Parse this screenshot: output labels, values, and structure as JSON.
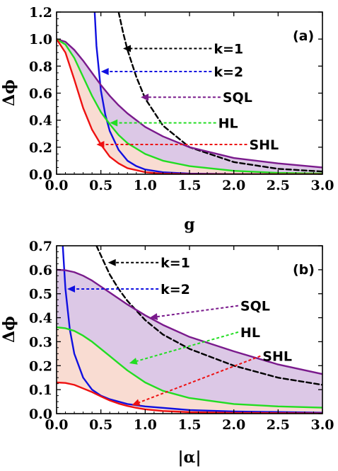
{
  "colors": {
    "k1": "#000000",
    "k2": "#1010e0",
    "sql": "#7a1a8c",
    "hl": "#22dd22",
    "shl": "#ee1111",
    "fill_upper": "#dcc8e6",
    "fill_lower": "#f9dcd2"
  },
  "chart_data": [
    {
      "type": "line",
      "panel_tag": "(a)",
      "xlabel": "g",
      "ylabel": "Δϕ",
      "xlim": [
        0,
        3
      ],
      "ylim": [
        0,
        1.2
      ],
      "xticks": [
        "0.0",
        "0.5",
        "1.0",
        "1.5",
        "2.0",
        "2.5",
        "3.0"
      ],
      "yticks": [
        "0.0",
        "0.2",
        "0.4",
        "0.6",
        "0.8",
        "1.0",
        "1.2"
      ],
      "series": [
        {
          "name": "k=1",
          "style": "dashed",
          "color": "#000000",
          "x": [
            0.7,
            0.75,
            0.8,
            0.9,
            1.0,
            1.2,
            1.5,
            2.0,
            2.5,
            3.0
          ],
          "y": [
            1.2,
            1.05,
            0.92,
            0.72,
            0.56,
            0.36,
            0.2,
            0.09,
            0.04,
            0.02
          ]
        },
        {
          "name": "k=2",
          "style": "solid",
          "color": "#1010e0",
          "x": [
            0.43,
            0.45,
            0.5,
            0.55,
            0.6,
            0.7,
            0.8,
            0.9,
            1.0,
            1.2,
            1.5,
            2.0,
            3.0
          ],
          "y": [
            1.2,
            0.95,
            0.62,
            0.44,
            0.32,
            0.18,
            0.1,
            0.06,
            0.035,
            0.015,
            0.005,
            0.001,
            0.0
          ]
        },
        {
          "name": "SQL",
          "style": "solid",
          "color": "#7a1a8c",
          "x": [
            0,
            0.1,
            0.2,
            0.3,
            0.4,
            0.5,
            0.6,
            0.7,
            0.8,
            1.0,
            1.2,
            1.5,
            2.0,
            2.5,
            3.0
          ],
          "y": [
            1.0,
            0.98,
            0.92,
            0.84,
            0.75,
            0.66,
            0.58,
            0.51,
            0.45,
            0.35,
            0.28,
            0.2,
            0.12,
            0.08,
            0.05
          ]
        },
        {
          "name": "HL",
          "style": "solid",
          "color": "#22dd22",
          "x": [
            0,
            0.1,
            0.2,
            0.3,
            0.4,
            0.5,
            0.6,
            0.7,
            0.8,
            1.0,
            1.2,
            1.5,
            2.0,
            2.5,
            3.0
          ],
          "y": [
            1.0,
            0.96,
            0.86,
            0.72,
            0.58,
            0.46,
            0.37,
            0.29,
            0.23,
            0.15,
            0.1,
            0.06,
            0.025,
            0.01,
            0.005
          ]
        },
        {
          "name": "SHL",
          "style": "solid",
          "color": "#ee1111",
          "x": [
            0,
            0.1,
            0.2,
            0.3,
            0.4,
            0.5,
            0.6,
            0.7,
            0.8,
            1.0,
            1.2,
            1.5,
            2.0,
            3.0
          ],
          "y": [
            1.0,
            0.9,
            0.7,
            0.49,
            0.33,
            0.22,
            0.13,
            0.08,
            0.045,
            0.015,
            0.004,
            0.001,
            0.0,
            0.0
          ]
        }
      ],
      "shading": [
        {
          "between": [
            "SQL",
            "HL"
          ],
          "color": "#dcc8e6"
        },
        {
          "between": [
            "HL",
            "SHL"
          ],
          "color": "#f9dcd2"
        }
      ],
      "annotations": [
        {
          "text": "k=1",
          "series": "k=1",
          "point": [
            0.75,
            0.93
          ],
          "label_at": [
            1.75,
            0.93
          ]
        },
        {
          "text": "k=2",
          "series": "k=2",
          "point": [
            0.5,
            0.76
          ],
          "label_at": [
            1.75,
            0.76
          ]
        },
        {
          "text": "SQL",
          "series": "SQL",
          "point": [
            0.95,
            0.57
          ],
          "label_at": [
            1.85,
            0.57
          ]
        },
        {
          "text": "HL",
          "series": "HL",
          "point": [
            0.6,
            0.38
          ],
          "label_at": [
            1.8,
            0.38
          ]
        },
        {
          "text": "SHL",
          "series": "SHL",
          "point": [
            0.45,
            0.22
          ],
          "label_at": [
            2.15,
            0.22
          ]
        }
      ]
    },
    {
      "type": "line",
      "panel_tag": "(b)",
      "xlabel": "|α|",
      "ylabel": "Δϕ",
      "xlim": [
        0,
        3
      ],
      "ylim": [
        0,
        0.7
      ],
      "xticks": [
        "0.0",
        "0.5",
        "1.0",
        "1.5",
        "2.0",
        "2.5",
        "3.0"
      ],
      "yticks": [
        "0.0",
        "0.1",
        "0.2",
        "0.3",
        "0.4",
        "0.5",
        "0.6",
        "0.7"
      ],
      "series": [
        {
          "name": "k=1",
          "style": "dashed",
          "color": "#000000",
          "x": [
            0.45,
            0.5,
            0.6,
            0.7,
            0.8,
            0.9,
            1.0,
            1.2,
            1.5,
            2.0,
            2.5,
            3.0
          ],
          "y": [
            0.7,
            0.66,
            0.58,
            0.52,
            0.47,
            0.43,
            0.39,
            0.33,
            0.27,
            0.2,
            0.15,
            0.12
          ]
        },
        {
          "name": "k=2",
          "style": "solid",
          "color": "#1010e0",
          "x": [
            0.07,
            0.1,
            0.15,
            0.2,
            0.3,
            0.4,
            0.5,
            0.6,
            0.8,
            1.0,
            1.5,
            2.0,
            3.0
          ],
          "y": [
            0.7,
            0.52,
            0.35,
            0.25,
            0.15,
            0.1,
            0.075,
            0.06,
            0.04,
            0.03,
            0.015,
            0.009,
            0.004
          ]
        },
        {
          "name": "SQL",
          "style": "solid",
          "color": "#7a1a8c",
          "x": [
            0,
            0.1,
            0.2,
            0.3,
            0.4,
            0.5,
            0.6,
            0.7,
            0.8,
            1.0,
            1.2,
            1.5,
            2.0,
            2.5,
            3.0
          ],
          "y": [
            0.6,
            0.598,
            0.59,
            0.575,
            0.555,
            0.53,
            0.505,
            0.48,
            0.455,
            0.41,
            0.37,
            0.32,
            0.26,
            0.205,
            0.165
          ]
        },
        {
          "name": "HL",
          "style": "solid",
          "color": "#22dd22",
          "x": [
            0,
            0.1,
            0.2,
            0.3,
            0.4,
            0.5,
            0.6,
            0.7,
            0.8,
            1.0,
            1.2,
            1.5,
            2.0,
            2.5,
            3.0
          ],
          "y": [
            0.36,
            0.356,
            0.345,
            0.325,
            0.3,
            0.27,
            0.24,
            0.21,
            0.18,
            0.13,
            0.095,
            0.065,
            0.04,
            0.03,
            0.025
          ]
        },
        {
          "name": "SHL",
          "style": "solid",
          "color": "#ee1111",
          "x": [
            0,
            0.1,
            0.2,
            0.3,
            0.4,
            0.5,
            0.6,
            0.7,
            0.8,
            0.9,
            1.0,
            1.2,
            1.5,
            2.0,
            3.0
          ],
          "y": [
            0.13,
            0.128,
            0.12,
            0.105,
            0.09,
            0.072,
            0.055,
            0.042,
            0.032,
            0.024,
            0.018,
            0.011,
            0.006,
            0.003,
            0.001
          ]
        }
      ],
      "shading": [
        {
          "between": [
            "SQL",
            "HL"
          ],
          "color": "#dcc8e6"
        },
        {
          "between": [
            "HL",
            "SHL"
          ],
          "color": "#f9dcd2"
        }
      ],
      "annotations": [
        {
          "text": "k=1",
          "series": "k=1",
          "point": [
            0.58,
            0.63
          ],
          "label_at": [
            1.15,
            0.63
          ]
        },
        {
          "text": "k=2",
          "series": "k=2",
          "point": [
            0.12,
            0.52
          ],
          "label_at": [
            1.15,
            0.52
          ]
        },
        {
          "text": "SQL",
          "series": "SQL",
          "point": [
            1.05,
            0.4
          ],
          "label_at": [
            2.05,
            0.45
          ]
        },
        {
          "text": "HL",
          "series": "HL",
          "point": [
            0.82,
            0.21
          ],
          "label_at": [
            2.05,
            0.34
          ]
        },
        {
          "text": "SHL",
          "series": "SHL",
          "point": [
            0.85,
            0.035
          ],
          "label_at": [
            2.3,
            0.24
          ]
        }
      ]
    }
  ]
}
